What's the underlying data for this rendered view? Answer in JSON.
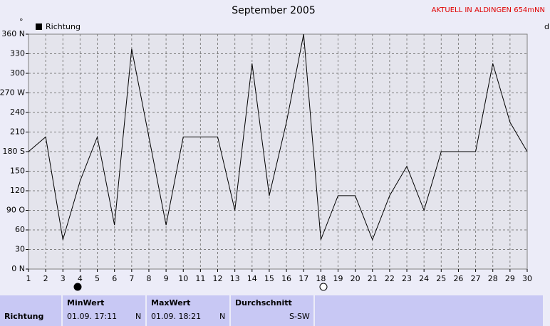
{
  "chart_data": {
    "type": "line",
    "title": "September 2005",
    "annotation": "AKTUELL IN ALDINGEN 654mNN",
    "x": [
      1,
      2,
      3,
      4,
      5,
      6,
      7,
      8,
      9,
      10,
      11,
      12,
      13,
      14,
      15,
      16,
      17,
      18,
      19,
      20,
      21,
      22,
      23,
      24,
      25,
      26,
      27,
      28,
      29,
      30
    ],
    "series": [
      {
        "name": "Richtung",
        "color": "#000000",
        "values": [
          180,
          202.5,
          45,
          135,
          202.5,
          67.5,
          337.5,
          202.5,
          67.5,
          202.5,
          202.5,
          202.5,
          90,
          315,
          112.5,
          225,
          360,
          45,
          112.5,
          112.5,
          45,
          112.5,
          157.5,
          90,
          180,
          180,
          180,
          315,
          225,
          180
        ]
      }
    ],
    "xlim": [
      1,
      30
    ],
    "xticks": [
      1,
      2,
      3,
      4,
      5,
      6,
      7,
      8,
      9,
      10,
      11,
      12,
      13,
      14,
      15,
      16,
      17,
      18,
      19,
      20,
      21,
      22,
      23,
      24,
      25,
      26,
      27,
      28,
      29,
      30
    ],
    "ylim": [
      0,
      360
    ],
    "yticks": [
      {
        "value": 0,
        "label": "0 N"
      },
      30,
      60,
      {
        "value": 90,
        "label": "90 O"
      },
      120,
      150,
      {
        "value": 180,
        "label": "180 S"
      },
      210,
      240,
      {
        "value": 270,
        "label": "270 W"
      },
      300,
      330,
      {
        "value": 360,
        "label": "360 N"
      }
    ],
    "grid": true,
    "legend": "top-left"
  },
  "table": {
    "headers": [
      "MinWert",
      "MaxWert",
      "Durchschnitt"
    ],
    "row": {
      "label": "Richtung",
      "min_time": "01.09.  17:11",
      "min_dir": "N",
      "max_time": "01.09.  18:21",
      "max_dir": "N",
      "avg": "S-SW"
    }
  }
}
